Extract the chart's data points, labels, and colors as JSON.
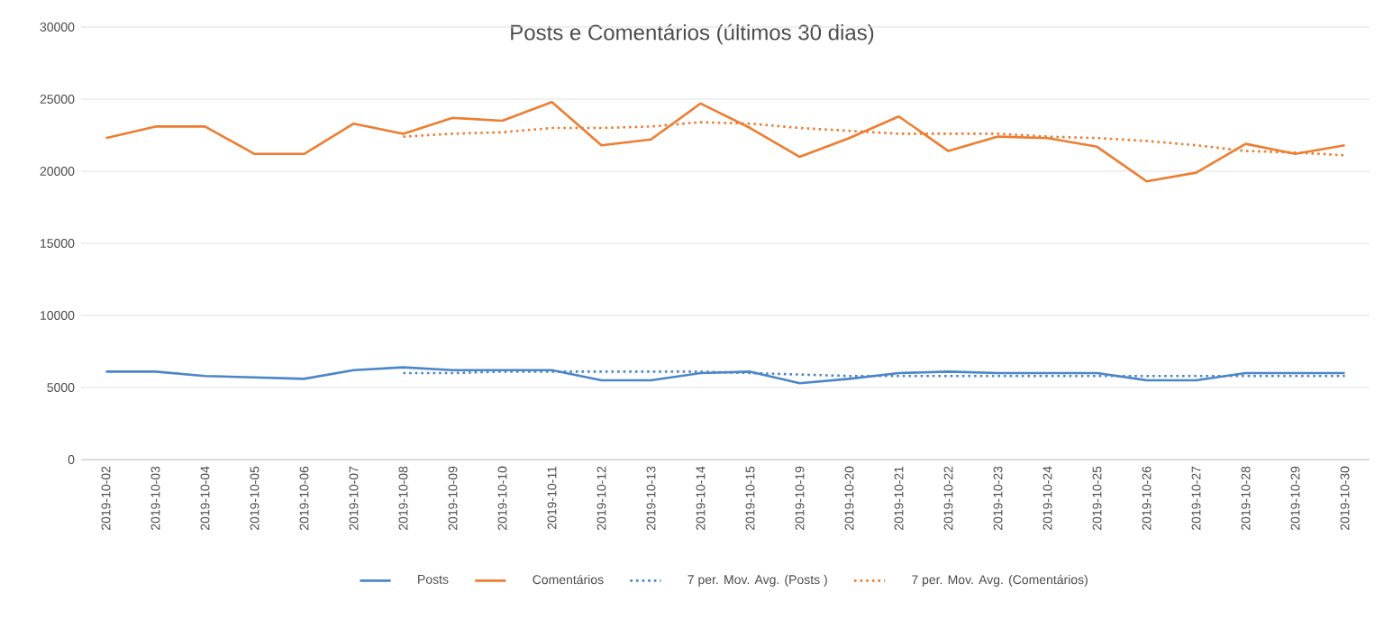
{
  "chart_data": {
    "type": "line",
    "title": "Posts e Comentários  (últimos 30 dias)",
    "categories": [
      "2019-10-02",
      "2019-10-03",
      "2019-10-04",
      "2019-10-05",
      "2019-10-06",
      "2019-10-07",
      "2019-10-08",
      "2019-10-09",
      "2019-10-10",
      "2019-10-11",
      "2019-10-12",
      "2019-10-13",
      "2019-10-14",
      "2019-10-15",
      "2019-10-19",
      "2019-10-20",
      "2019-10-21",
      "2019-10-22",
      "2019-10-23",
      "2019-10-24",
      "2019-10-25",
      "2019-10-26",
      "2019-10-27",
      "2019-10-28",
      "2019-10-29",
      "2019-10-30"
    ],
    "series": [
      {
        "name": "Posts",
        "color": "#4a86c8",
        "line_style": "solid",
        "values": [
          6100,
          6100,
          5800,
          5700,
          5600,
          6200,
          6400,
          6200,
          6200,
          6200,
          5500,
          5500,
          6000,
          6100,
          5300,
          5600,
          6000,
          6100,
          6000,
          6000,
          6000,
          5500,
          5500,
          6000,
          6000,
          6000
        ]
      },
      {
        "name": "Comentários",
        "color": "#ed7d31",
        "line_style": "solid",
        "values": [
          22300,
          23100,
          23100,
          21200,
          21200,
          23300,
          22600,
          23700,
          23500,
          24800,
          21800,
          22200,
          24700,
          23000,
          21000,
          22300,
          23800,
          21400,
          22400,
          22300,
          21700,
          19300,
          19900,
          21900,
          21200,
          21800
        ]
      },
      {
        "name": "7 per. Mov. Avg. (Posts )",
        "color": "#4a86c8",
        "line_style": "dotted",
        "values": [
          null,
          null,
          null,
          null,
          null,
          null,
          6000,
          6000,
          6100,
          6100,
          6100,
          6100,
          6100,
          6000,
          5900,
          5800,
          5800,
          5800,
          5800,
          5800,
          5800,
          5800,
          5800,
          5800,
          5800,
          5800
        ]
      },
      {
        "name": "7 per. Mov. Avg. (Comentários)",
        "color": "#ed7d31",
        "line_style": "dotted",
        "values": [
          null,
          null,
          null,
          null,
          null,
          null,
          22400,
          22600,
          22700,
          23000,
          23000,
          23100,
          23400,
          23300,
          23000,
          22800,
          22600,
          22600,
          22600,
          22400,
          22300,
          22100,
          21800,
          21400,
          21300,
          21100
        ]
      }
    ],
    "ylim": [
      0,
      30000
    ],
    "yticks": [
      0,
      5000,
      10000,
      15000,
      20000,
      25000,
      30000
    ],
    "grid": "y",
    "legend": "bottom"
  }
}
